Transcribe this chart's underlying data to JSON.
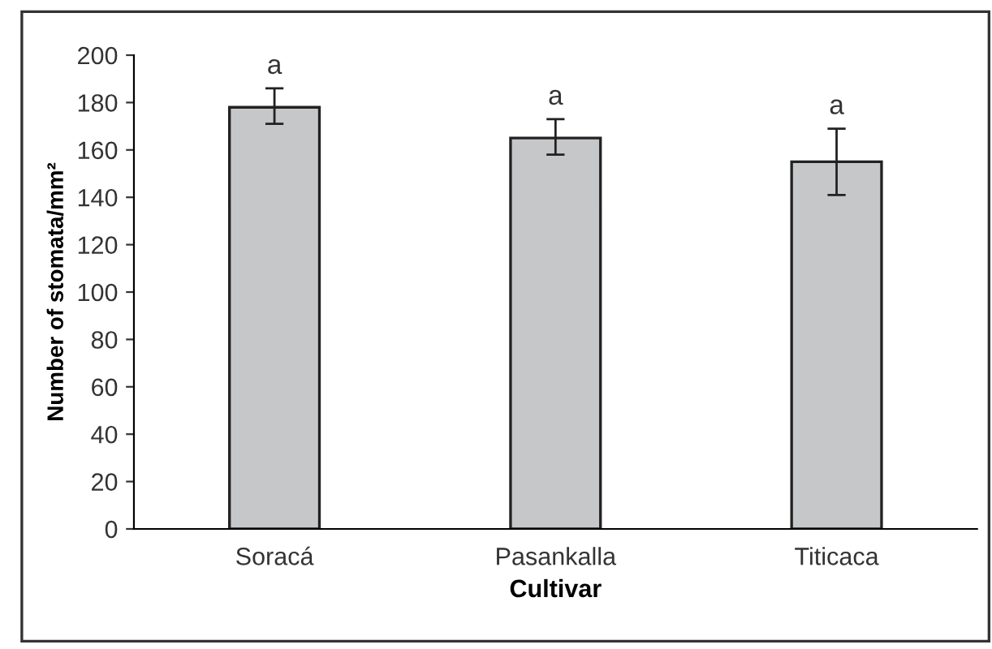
{
  "chart_data": {
    "type": "bar",
    "xlabel": "Cultivar",
    "ylabel": "Number of stomata/mm²",
    "categories": [
      "Soracá",
      "Pasankalla",
      "Titicaca"
    ],
    "values": [
      178,
      165,
      155
    ],
    "errors": [
      [
        171,
        186
      ],
      [
        158,
        173
      ],
      [
        141,
        169
      ]
    ],
    "color": "#c6c7c9",
    "ylim": [
      0,
      200
    ],
    "yticks": [
      0,
      20,
      40,
      60,
      80,
      100,
      120,
      140,
      160,
      180,
      200
    ],
    "grid": false,
    "annotations": [
      "a",
      "a",
      "a"
    ]
  }
}
